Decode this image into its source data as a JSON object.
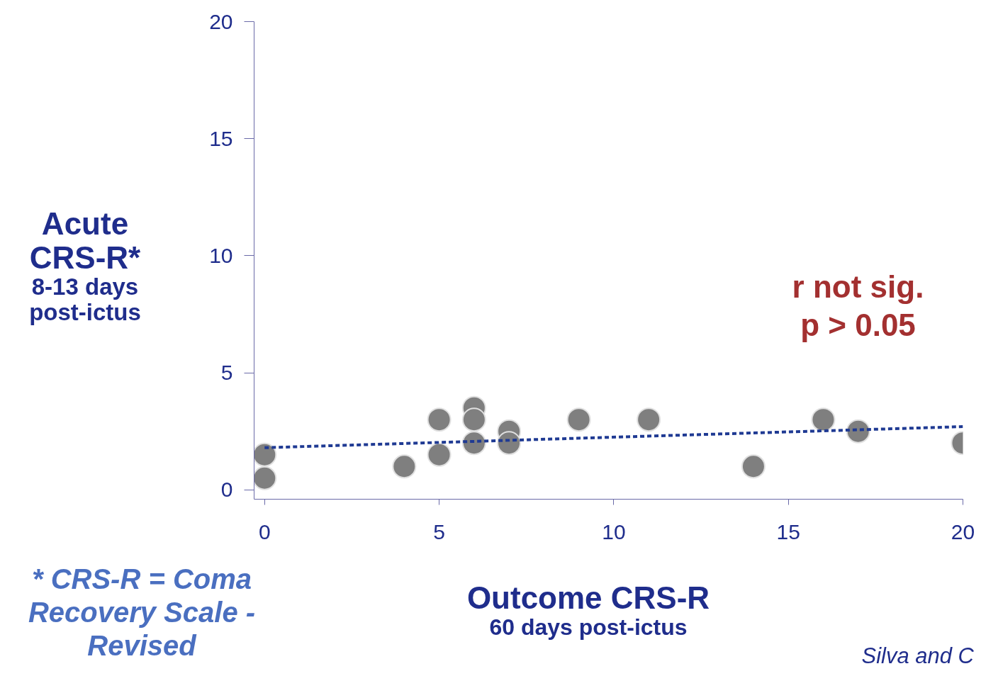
{
  "chart_data": {
    "type": "scatter",
    "xlabel": "Outcome CRS-R\n60 days post-ictus",
    "ylabel": "Acute\nCRS-R*\n8-13 days\npost-ictus",
    "x": [
      0,
      0,
      4,
      5,
      5,
      6,
      6,
      6,
      7,
      7,
      9,
      11,
      14,
      16,
      17,
      20
    ],
    "series": [
      {
        "color": "#7f7f7f",
        "values": [
          1.5,
          0.5,
          1,
          3,
          1.5,
          3.5,
          3,
          2,
          2.5,
          2,
          3,
          3,
          1,
          3,
          2.5,
          2
        ]
      },
      {
        "type": "line",
        "color": "#1f3a93",
        "line_style": "dashed",
        "marker": "none",
        "x": [
          0,
          20
        ],
        "values": [
          1.8,
          2.7
        ]
      }
    ],
    "marker": "circle",
    "xlim": [
      -0.3,
      20
    ],
    "ylim": [
      -0.4,
      20
    ],
    "xticks": [
      0,
      5,
      10,
      15,
      20
    ],
    "yticks": [
      0,
      5,
      10,
      15,
      20
    ],
    "grid": false,
    "annotations": [
      "r not sig.",
      "p > 0.05",
      "* CRS-R = Coma Recovery Scale - Revised",
      "Silva and C"
    ]
  }
}
